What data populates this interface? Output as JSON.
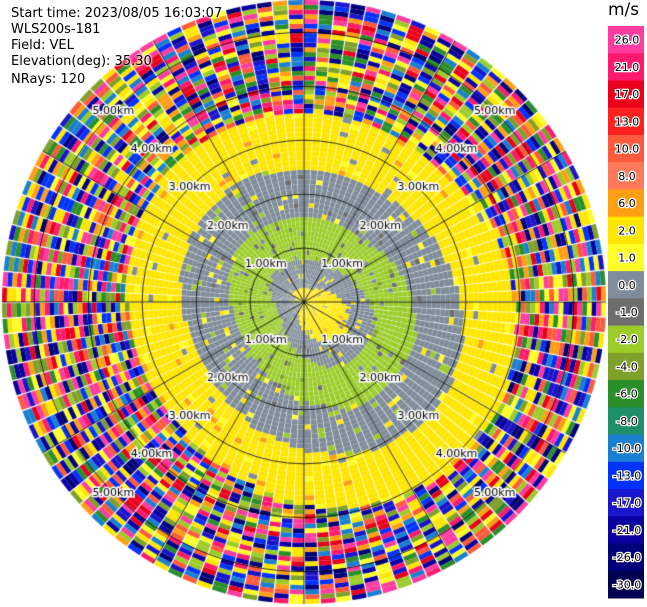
{
  "header": {
    "start_time": "Start time: 2023/08/05 16:03:07",
    "instrument": "WLS200s-181",
    "field": "Field: VEL",
    "elevation": "Elevation(deg): 35.30",
    "nrays": "NRays: 120"
  },
  "chart_data": {
    "type": "heatmap",
    "projection": "polar-ppi",
    "nrays": 120,
    "range_rings_km": [
      1,
      2,
      3,
      4,
      5
    ],
    "range_labels": [
      "1.00km",
      "2.00km",
      "3.00km",
      "4.00km",
      "5.00km"
    ],
    "max_range_km": 5.6,
    "colorbar": {
      "unit": "m/s",
      "ticks": [
        "26.0",
        "21.0",
        "17.0",
        "13.0",
        "10.0",
        "8.0",
        "6.0",
        "2.0",
        "1.0",
        "0.0",
        "-1.0",
        "-2.0",
        "-4.0",
        "-6.0",
        "-8.0",
        "-10.0",
        "-13.0",
        "-17.0",
        "-21.0",
        "-26.0",
        "-30.0"
      ],
      "colors": [
        "#ff3ca0",
        "#ff1a6e",
        "#e8001c",
        "#ff2020",
        "#ff5a3c",
        "#ff7a5a",
        "#ff9f14",
        "#ffe600",
        "#ffff28",
        "#7f8c99",
        "#6e6e6e",
        "#9ccc2a",
        "#7fa02a",
        "#2a8f2a",
        "#1f8f6a",
        "#1a7fd0",
        "#0032ff",
        "#1a14cc",
        "#0a00a0",
        "#000078",
        "#000050"
      ]
    },
    "velocity_field": [
      {
        "range_km": [
          0.0,
          0.4
        ],
        "value_ms": 2.0
      },
      {
        "range_km": [
          0.4,
          0.9
        ],
        "value_ms": 0.0
      },
      {
        "range_km": [
          0.9,
          1.7
        ],
        "value_ms": -2.0
      },
      {
        "range_km": [
          1.7,
          2.6
        ],
        "value_ms": 0.0
      },
      {
        "range_km": [
          2.6,
          3.6
        ],
        "value_ms": 2.0
      },
      {
        "range_km": [
          3.6,
          5.6
        ],
        "value_ms": "noise"
      }
    ]
  }
}
